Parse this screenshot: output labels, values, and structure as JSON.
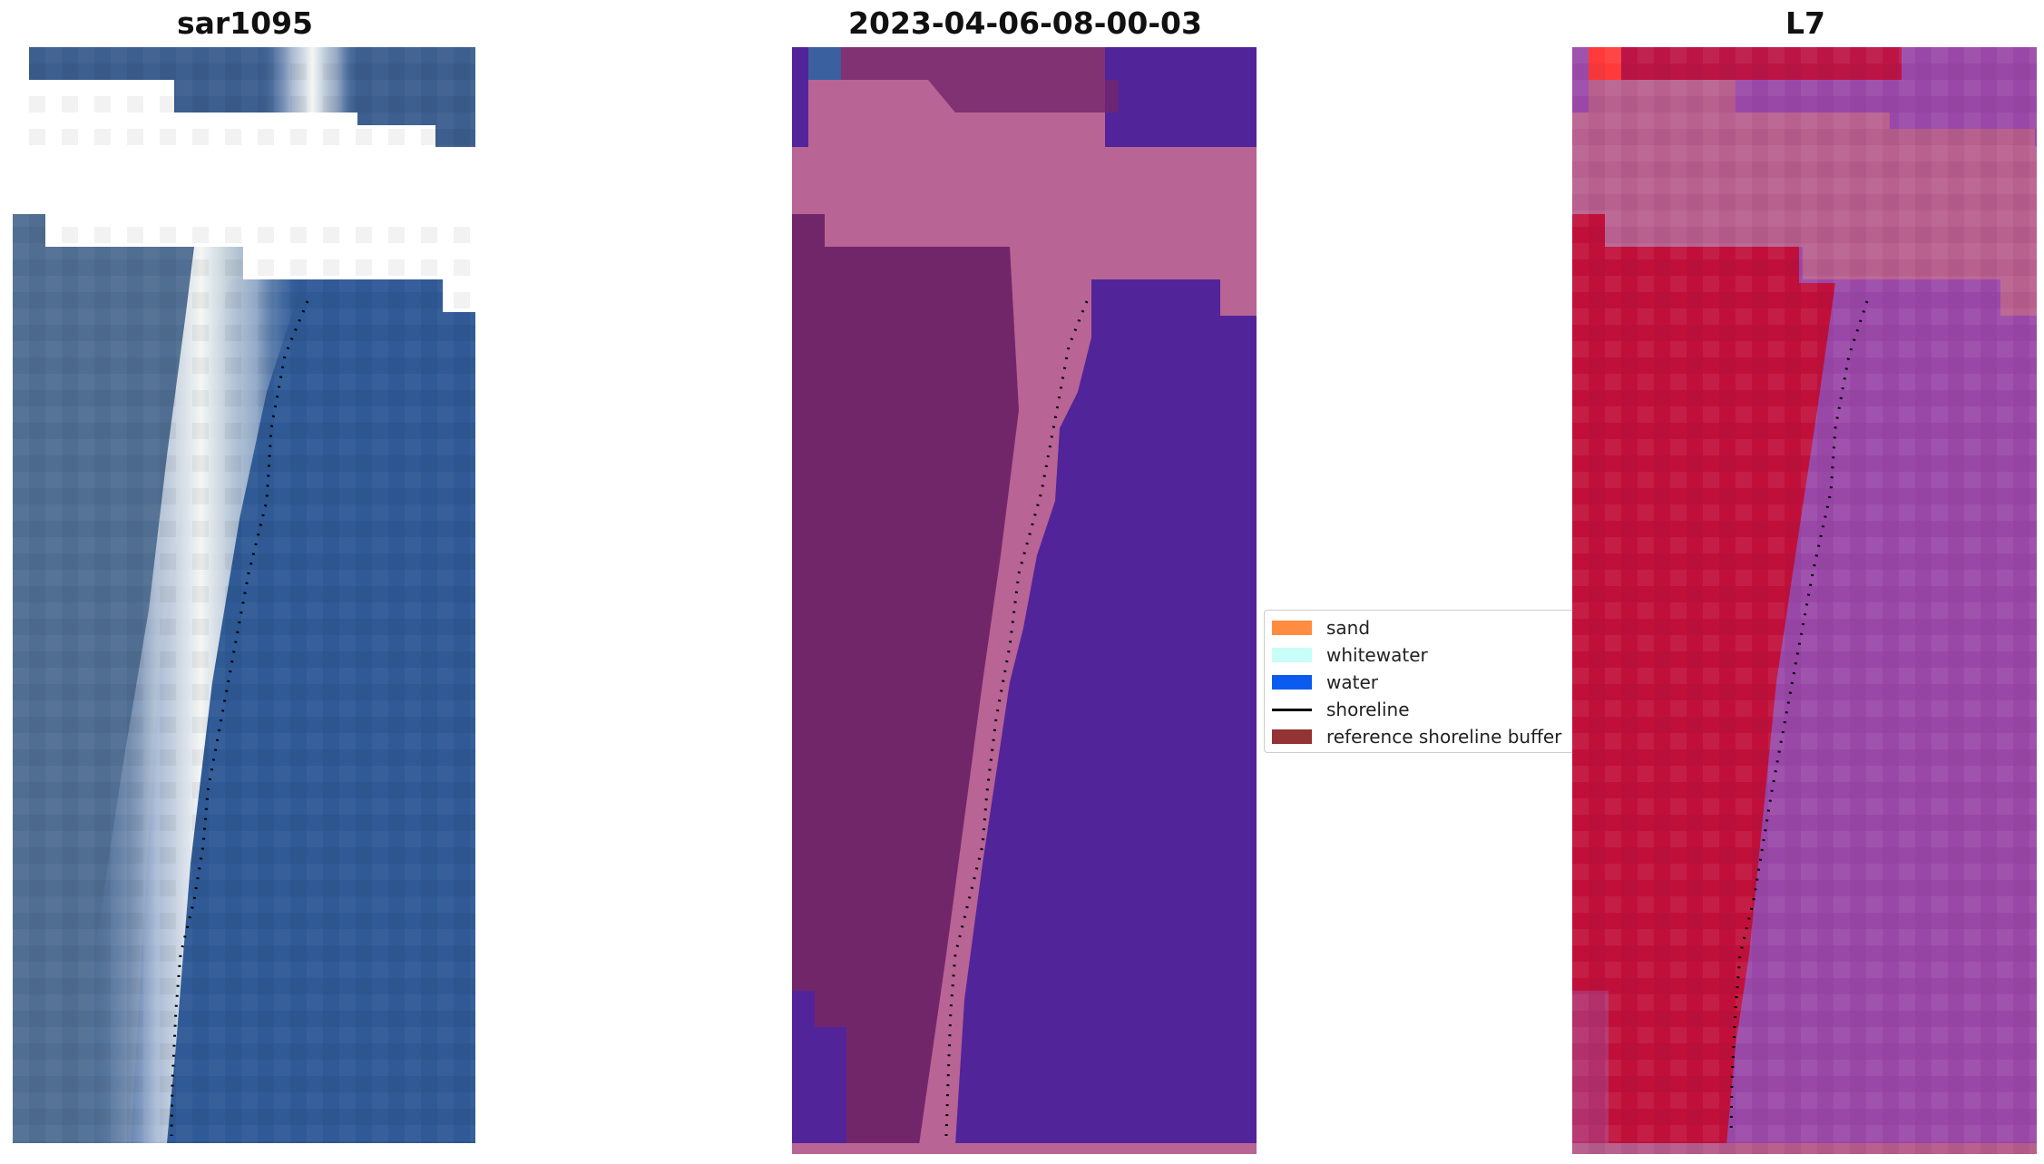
{
  "panels": [
    {
      "id": "rgb",
      "title": "sar1095"
    },
    {
      "id": "class",
      "title": "2023-04-06-08-00-03"
    },
    {
      "id": "index",
      "title": "L7"
    }
  ],
  "legend": {
    "items": [
      {
        "label": "sand",
        "kind": "patch",
        "color": "#ff8c40"
      },
      {
        "label": "whitewater",
        "kind": "patch",
        "color": "#c8fff8"
      },
      {
        "label": "water",
        "kind": "patch",
        "color": "#0a5cf0"
      },
      {
        "label": "shoreline",
        "kind": "line",
        "color": "#000000"
      },
      {
        "label": "reference shoreline buffer",
        "kind": "patch",
        "color": "#943333"
      }
    ]
  },
  "colors": {
    "water_blue": "#2f5a96",
    "whitewater": "#eef2f4",
    "class_water": "#52249a",
    "class_buffer": "#b86494",
    "class_land": "#72266a",
    "index_red": "#c0103a",
    "index_purple": "#9a48a8",
    "shoreline": "#000000"
  }
}
